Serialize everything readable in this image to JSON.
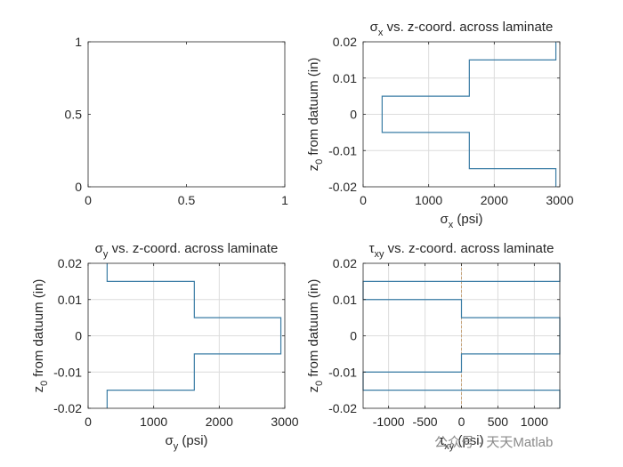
{
  "watermark": "公众号 · 天天Matlab",
  "colors": {
    "line": "#3a7ca5",
    "axis": "#262626",
    "grid": "#dcdcdc",
    "zero_line": "#c8a47a"
  },
  "chart_data": [
    {
      "type": "line",
      "title": "",
      "xlabel": "",
      "ylabel": "",
      "xlim": [
        0,
        1
      ],
      "ylim": [
        0,
        1
      ],
      "xticks": [
        0,
        0.5,
        1
      ],
      "xtick_labels": [
        "0",
        "0.5",
        "1"
      ],
      "yticks": [
        0,
        0.5,
        1
      ],
      "ytick_labels": [
        "0",
        "0.5",
        "1"
      ],
      "grid": false,
      "series": []
    },
    {
      "type": "line",
      "title_symbol": "σ",
      "title_sub": "x",
      "title_rest": " vs. z-coord. across laminate",
      "xlabel_symbol": "σ",
      "xlabel_sub": "x",
      "xlabel_rest": " (psi)",
      "ylabel_pre": "z",
      "ylabel_sub": "0",
      "ylabel_rest": " from datuum (in)",
      "xlim": [
        0,
        3000
      ],
      "ylim": [
        -0.02,
        0.02
      ],
      "xticks": [
        0,
        1000,
        2000,
        3000
      ],
      "xtick_labels": [
        "0",
        "1000",
        "2000",
        "3000"
      ],
      "yticks": [
        -0.02,
        -0.01,
        0,
        0.01,
        0.02
      ],
      "ytick_labels": [
        "-0.02",
        "-0.01",
        "0",
        "0.01",
        "0.02"
      ],
      "grid": true,
      "series": [
        {
          "x": [
            2940,
            2940,
            1620,
            1620,
            290,
            290,
            1620,
            1620,
            2940,
            2940
          ],
          "y": [
            -0.02,
            -0.015,
            -0.015,
            -0.005,
            -0.005,
            0.005,
            0.005,
            0.015,
            0.015,
            0.02
          ]
        }
      ]
    },
    {
      "type": "line",
      "title_symbol": "σ",
      "title_sub": "y",
      "title_rest": " vs. z-coord. across laminate",
      "xlabel_symbol": "σ",
      "xlabel_sub": "y",
      "xlabel_rest": " (psi)",
      "ylabel_pre": "z",
      "ylabel_sub": "0",
      "ylabel_rest": " from datuum (in)",
      "xlim": [
        0,
        3000
      ],
      "ylim": [
        -0.02,
        0.02
      ],
      "xticks": [
        0,
        1000,
        2000,
        3000
      ],
      "xtick_labels": [
        "0",
        "1000",
        "2000",
        "3000"
      ],
      "yticks": [
        -0.02,
        -0.01,
        0,
        0.01,
        0.02
      ],
      "ytick_labels": [
        "-0.02",
        "-0.01",
        "0",
        "0.01",
        "0.02"
      ],
      "grid": true,
      "series": [
        {
          "x": [
            290,
            290,
            1620,
            1620,
            2940,
            2940,
            1620,
            1620,
            290,
            290
          ],
          "y": [
            -0.02,
            -0.015,
            -0.015,
            -0.005,
            -0.005,
            0.005,
            0.005,
            0.015,
            0.015,
            0.02
          ]
        }
      ]
    },
    {
      "type": "line",
      "title_symbol": "τ",
      "title_sub": "xy",
      "title_rest": " vs. z-coord. across laminate",
      "xlabel_symbol": "τ",
      "xlabel_sub": "xy",
      "xlabel_rest": " (psi)",
      "ylabel_pre": "z",
      "ylabel_sub": "0",
      "ylabel_rest": " from datuum (in)",
      "xlim": [
        -1350,
        1350
      ],
      "ylim": [
        -0.02,
        0.02
      ],
      "xticks": [
        -1000,
        -500,
        0,
        500,
        1000
      ],
      "xtick_labels": [
        "-1000",
        "-500",
        "0",
        "500",
        "1000"
      ],
      "yticks": [
        -0.02,
        -0.01,
        0,
        0.01,
        0.02
      ],
      "ytick_labels": [
        "-0.02",
        "-0.01",
        "0",
        "0.01",
        "0.02"
      ],
      "grid": true,
      "zero_line_x": 0,
      "series": [
        {
          "x": [
            1350,
            1350,
            0,
            0,
            -1350,
            -1350,
            0,
            0,
            1350,
            1350,
            0,
            0,
            -1350,
            -1350,
            0,
            0,
            1350,
            1350
          ],
          "y": [
            -0.02,
            -0.015,
            -0.015,
            -0.015,
            -0.015,
            -0.01,
            -0.01,
            -0.005,
            -0.005,
            0.005,
            0.005,
            0.01,
            0.01,
            0.015,
            0.015,
            0.015,
            0.015,
            0.02
          ]
        }
      ]
    }
  ]
}
